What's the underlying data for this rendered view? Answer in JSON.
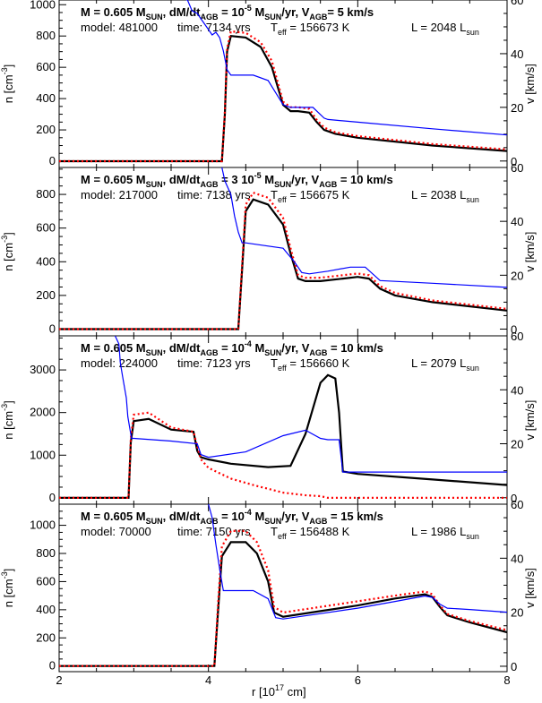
{
  "figure": {
    "xlabel": "r [10",
    "xlabel_exp": "17",
    "xlabel_tail": " cm]"
  },
  "chart_data": [
    {
      "type": "line",
      "header_line1": "M = 0.605 M",
      "header_line1_sub": "SUN",
      "header_line1_b": ", dM/dt",
      "header_line1_b_sub": "AGB",
      "header_line1_c": " = 10",
      "header_line1_c_sup": "-5",
      "header_line1_d": " M",
      "header_line1_d_sub": "SUN",
      "header_line1_e": "/yr, V",
      "header_line1_e_sub": "AGB",
      "header_line1_f": "=  5 km/s",
      "model": "model: 481000",
      "time": "time: 7134 yrs",
      "teff": "T",
      "teff_sub": "eff",
      "teff_val": " = 156673 K",
      "lum": "L = 2048 L",
      "lum_sub": "sun",
      "ylabel_left": "n [cm",
      "ylabel_left_exp": "-3",
      "ylabel_left_tail": "]",
      "ylabel_right": "v [km/s]",
      "xlim": [
        2,
        8
      ],
      "ylim_left": [
        -40,
        1030
      ],
      "yticks_left": [
        0,
        200,
        400,
        600,
        800,
        1000
      ],
      "ylim_right": [
        -2.4,
        60
      ],
      "yticks_right": [
        0,
        20,
        40,
        60
      ],
      "series": [
        {
          "role": "density",
          "color": "#000000",
          "x": [
            2.0,
            4.18,
            4.22,
            4.25,
            4.3,
            4.5,
            4.7,
            4.85,
            5.0,
            5.1,
            5.2,
            5.35,
            5.45,
            5.55,
            5.7,
            6.0,
            7.0,
            8.0
          ],
          "y": [
            0,
            0,
            300,
            700,
            800,
            790,
            730,
            600,
            360,
            320,
            320,
            310,
            250,
            200,
            175,
            150,
            100,
            65
          ]
        },
        {
          "role": "model",
          "color": "#ff0000",
          "x": [
            2.0,
            4.18,
            4.22,
            4.25,
            4.3,
            4.5,
            4.7,
            4.85,
            5.0,
            5.1,
            5.2,
            5.35,
            5.45,
            5.55,
            5.7,
            6.0,
            7.0,
            8.0
          ],
          "y": [
            0,
            0,
            320,
            720,
            830,
            820,
            760,
            640,
            380,
            345,
            345,
            335,
            265,
            215,
            185,
            160,
            110,
            75
          ]
        },
        {
          "role": "velocity",
          "color": "#0000ff",
          "x": [
            3.6,
            3.72,
            3.78,
            3.85,
            3.9,
            4.0,
            4.05,
            4.1,
            4.15,
            4.2,
            4.25,
            4.3,
            4.6,
            4.8,
            5.0,
            5.1,
            5.2,
            5.4,
            5.55,
            5.6,
            6.0,
            7.0,
            8.0
          ],
          "y": [
            61,
            60,
            56,
            55,
            53,
            49,
            47,
            48,
            46,
            41,
            34,
            32,
            32,
            30,
            21,
            20,
            20,
            20,
            16,
            15.5,
            14.5,
            12,
            9.7
          ]
        }
      ]
    },
    {
      "type": "line",
      "header_line1": "M = 0.605 M",
      "header_line1_sub": "SUN",
      "header_line1_b": ", dM/dt",
      "header_line1_b_sub": "AGB",
      "header_line1_c": " = 3 10",
      "header_line1_c_sup": "-5",
      "header_line1_d": " M",
      "header_line1_d_sub": "SUN",
      "header_line1_e": "/yr, V",
      "header_line1_e_sub": "AGB",
      "header_line1_f": " = 10 km/s",
      "model": "model: 217000",
      "time": "time: 7138 yrs",
      "teff": "T",
      "teff_sub": "eff",
      "teff_val": " = 156675 K",
      "lum": "L = 2038 L",
      "lum_sub": "sun",
      "ylabel_left": "n [cm",
      "ylabel_left_exp": "-3",
      "ylabel_left_tail": "]",
      "ylabel_right": "v [km/s]",
      "xlim": [
        2,
        8
      ],
      "ylim_left": [
        -40,
        960
      ],
      "yticks_left": [
        0,
        200,
        400,
        600,
        800
      ],
      "ylim_right": [
        -2.5,
        60
      ],
      "yticks_right": [
        0,
        20,
        40,
        60
      ],
      "series": [
        {
          "role": "density",
          "color": "#000000",
          "x": [
            2.0,
            4.4,
            4.45,
            4.5,
            4.6,
            4.8,
            5.0,
            5.1,
            5.2,
            5.3,
            5.5,
            5.8,
            6.0,
            6.15,
            6.3,
            6.5,
            7.0,
            8.0
          ],
          "y": [
            0,
            0,
            350,
            700,
            770,
            740,
            620,
            450,
            300,
            285,
            285,
            300,
            310,
            300,
            240,
            200,
            160,
            110
          ]
        },
        {
          "role": "model",
          "color": "#ff0000",
          "x": [
            2.0,
            4.4,
            4.45,
            4.5,
            4.6,
            4.8,
            5.0,
            5.1,
            5.2,
            5.3,
            5.5,
            5.8,
            6.0,
            6.15,
            6.3,
            6.5,
            7.0,
            8.0
          ],
          "y": [
            0,
            0,
            380,
            740,
            810,
            780,
            660,
            480,
            320,
            305,
            305,
            320,
            330,
            320,
            255,
            215,
            170,
            120
          ]
        },
        {
          "role": "velocity",
          "color": "#0000ff",
          "x": [
            4.18,
            4.22,
            4.3,
            4.35,
            4.4,
            4.45,
            4.5,
            5.0,
            5.15,
            5.25,
            5.35,
            5.6,
            5.9,
            6.1,
            6.3,
            7.0,
            8.0
          ],
          "y": [
            60,
            55,
            50,
            42,
            36,
            32,
            32,
            30,
            25,
            21,
            20.5,
            21.5,
            23,
            23,
            18,
            17,
            15.5
          ]
        }
      ]
    },
    {
      "type": "line",
      "header_line1": "M = 0.605 M",
      "header_line1_sub": "SUN",
      "header_line1_b": ", dM/dt",
      "header_line1_b_sub": "AGB",
      "header_line1_c": " = 10",
      "header_line1_c_sup": "-4",
      "header_line1_d": " M",
      "header_line1_d_sub": "SUN",
      "header_line1_e": "/yr, V",
      "header_line1_e_sub": "AGB",
      "header_line1_f": " = 10 km/s",
      "model": "model: 224000",
      "time": "time: 7123 yrs",
      "teff": "T",
      "teff_sub": "eff",
      "teff_val": " = 156660 K",
      "lum": "L = 2079 L",
      "lum_sub": "sun",
      "ylabel_left": "n [cm",
      "ylabel_left_exp": "-3",
      "ylabel_left_tail": "]",
      "ylabel_right": "v [km/s]",
      "xlim": [
        2,
        8
      ],
      "ylim_left": [
        -150,
        3800
      ],
      "yticks_left": [
        0,
        1000,
        2000,
        3000
      ],
      "ylim_right": [
        -2.4,
        60
      ],
      "yticks_right": [
        0,
        20,
        40,
        60
      ],
      "series": [
        {
          "role": "density",
          "color": "#000000",
          "x": [
            2.0,
            2.93,
            2.96,
            3.0,
            3.2,
            3.5,
            3.8,
            3.85,
            3.9,
            4.0,
            4.3,
            4.8,
            5.1,
            5.3,
            5.5,
            5.6,
            5.7,
            5.75,
            5.8,
            6.0,
            7.0,
            8.0
          ],
          "y": [
            0,
            0,
            1300,
            1800,
            1850,
            1600,
            1550,
            1100,
            950,
            900,
            800,
            720,
            750,
            1500,
            2700,
            2880,
            2800,
            2000,
            620,
            560,
            430,
            300
          ]
        },
        {
          "role": "model",
          "color": "#ff0000",
          "x": [
            2.0,
            2.93,
            2.96,
            3.0,
            3.2,
            3.5,
            3.8,
            3.85,
            3.9,
            4.0,
            4.3,
            4.6,
            5.0,
            5.3,
            5.5,
            5.6,
            6.0,
            7.0,
            8.0
          ],
          "y": [
            0,
            0,
            1400,
            1950,
            2000,
            1650,
            1550,
            1200,
            900,
            700,
            450,
            300,
            120,
            60,
            40,
            0,
            0,
            0,
            0
          ]
        },
        {
          "role": "velocity",
          "color": "#0000ff",
          "x": [
            2.75,
            2.8,
            2.82,
            2.85,
            2.9,
            2.92,
            2.97,
            3.0,
            3.5,
            3.85,
            3.9,
            4.0,
            4.5,
            5.0,
            5.3,
            5.5,
            5.6,
            5.75,
            5.8,
            6.0,
            7.0,
            8.0
          ],
          "y": [
            60,
            57,
            50,
            45,
            37,
            30,
            22,
            22,
            21,
            20,
            16,
            15,
            17,
            23,
            25,
            22,
            21.5,
            21.5,
            9.5,
            9.5,
            9.5,
            9.5
          ]
        }
      ]
    },
    {
      "type": "line",
      "header_line1": "M = 0.605 M",
      "header_line1_sub": "SUN",
      "header_line1_b": ", dM/dt",
      "header_line1_b_sub": "AGB",
      "header_line1_c": " = 10",
      "header_line1_c_sup": "-4",
      "header_line1_d": " M",
      "header_line1_d_sub": "SUN",
      "header_line1_e": "/yr, V",
      "header_line1_e_sub": "AGB",
      "header_line1_f": " = 15 km/s",
      "model": "model: 70000",
      "time": "time: 7150 yrs",
      "teff": "T",
      "teff_sub": "eff",
      "teff_val": " = 156488 K",
      "lum": "L = 1986 L",
      "lum_sub": "sun",
      "ylabel_left": "n [cm",
      "ylabel_left_exp": "-3",
      "ylabel_left_tail": "]",
      "ylabel_right": "v [km/s]",
      "xlim": [
        2,
        8
      ],
      "ylim_left": [
        -40,
        1150
      ],
      "yticks_left": [
        0,
        200,
        400,
        600,
        800,
        1000
      ],
      "ylim_right": [
        -2,
        60
      ],
      "yticks_right": [
        0,
        20,
        40,
        60
      ],
      "series": [
        {
          "role": "density",
          "color": "#000000",
          "x": [
            2.0,
            4.08,
            4.13,
            4.18,
            4.3,
            4.5,
            4.65,
            4.8,
            4.88,
            5.0,
            5.5,
            6.0,
            6.5,
            6.9,
            7.0,
            7.1,
            7.2,
            7.5,
            8.0
          ],
          "y": [
            0,
            0,
            400,
            780,
            880,
            880,
            800,
            600,
            380,
            350,
            390,
            430,
            480,
            510,
            490,
            420,
            360,
            310,
            240
          ]
        },
        {
          "role": "model",
          "color": "#ff0000",
          "x": [
            2.0,
            4.08,
            4.13,
            4.18,
            4.3,
            4.5,
            4.65,
            4.8,
            4.88,
            5.0,
            5.5,
            6.0,
            6.5,
            6.9,
            7.0,
            7.1,
            7.2,
            7.5,
            8.0
          ],
          "y": [
            0,
            0,
            450,
            850,
            960,
            960,
            880,
            680,
            420,
            380,
            420,
            460,
            500,
            530,
            510,
            430,
            370,
            320,
            255
          ]
        },
        {
          "role": "velocity",
          "color": "#0000ff",
          "x": [
            4.0,
            4.05,
            4.1,
            4.15,
            4.2,
            4.6,
            4.8,
            4.9,
            5.0,
            5.5,
            6.0,
            6.5,
            6.9,
            7.0,
            7.1,
            7.2,
            7.5,
            8.0
          ],
          "y": [
            60,
            55,
            45,
            36,
            28,
            28,
            25,
            18,
            17.5,
            19.5,
            21.5,
            24,
            26,
            25.5,
            23,
            21.5,
            21,
            20
          ]
        }
      ]
    }
  ]
}
